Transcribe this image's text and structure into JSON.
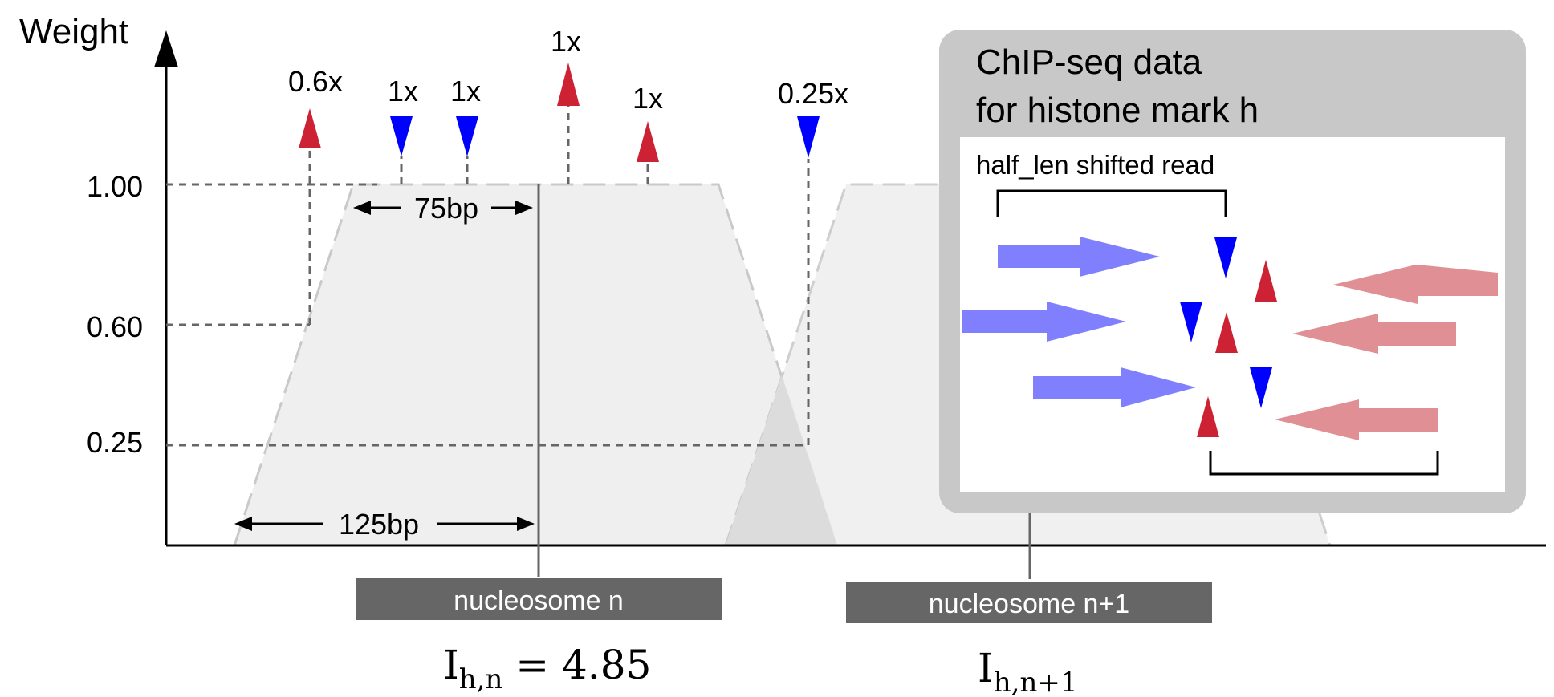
{
  "axis": {
    "y_title": "Weight",
    "y_ticks": [
      "1.00",
      "0.60",
      "0.25"
    ]
  },
  "reads": {
    "labels": [
      "0.6x",
      "1x",
      "1x",
      "1x",
      "1x",
      "0.25x"
    ]
  },
  "dimensions": {
    "plateau": "75bp",
    "base": "125bp"
  },
  "nucleosomes": [
    {
      "label": "nucleosome n",
      "formula_main": "I",
      "formula_sub": "h,n",
      "formula_rest": " = 4.85"
    },
    {
      "label": "nucleosome n+1",
      "formula_main": "I",
      "formula_sub": "h,n+1",
      "formula_rest": ""
    }
  ],
  "chipseq_panel": {
    "title_line1": "ChIP-seq data",
    "title_line2": "for histone mark h",
    "shift_label": "half_len shifted read"
  },
  "colors": {
    "forward_read": "#8080ff",
    "reverse_read": "#e09095",
    "forward_marker": "#0000ff",
    "reverse_marker": "#cc2233",
    "trapezoid_fill": "#efefef",
    "nucleosome_bar": "#666666",
    "panel_frame": "#c8c8c8"
  }
}
